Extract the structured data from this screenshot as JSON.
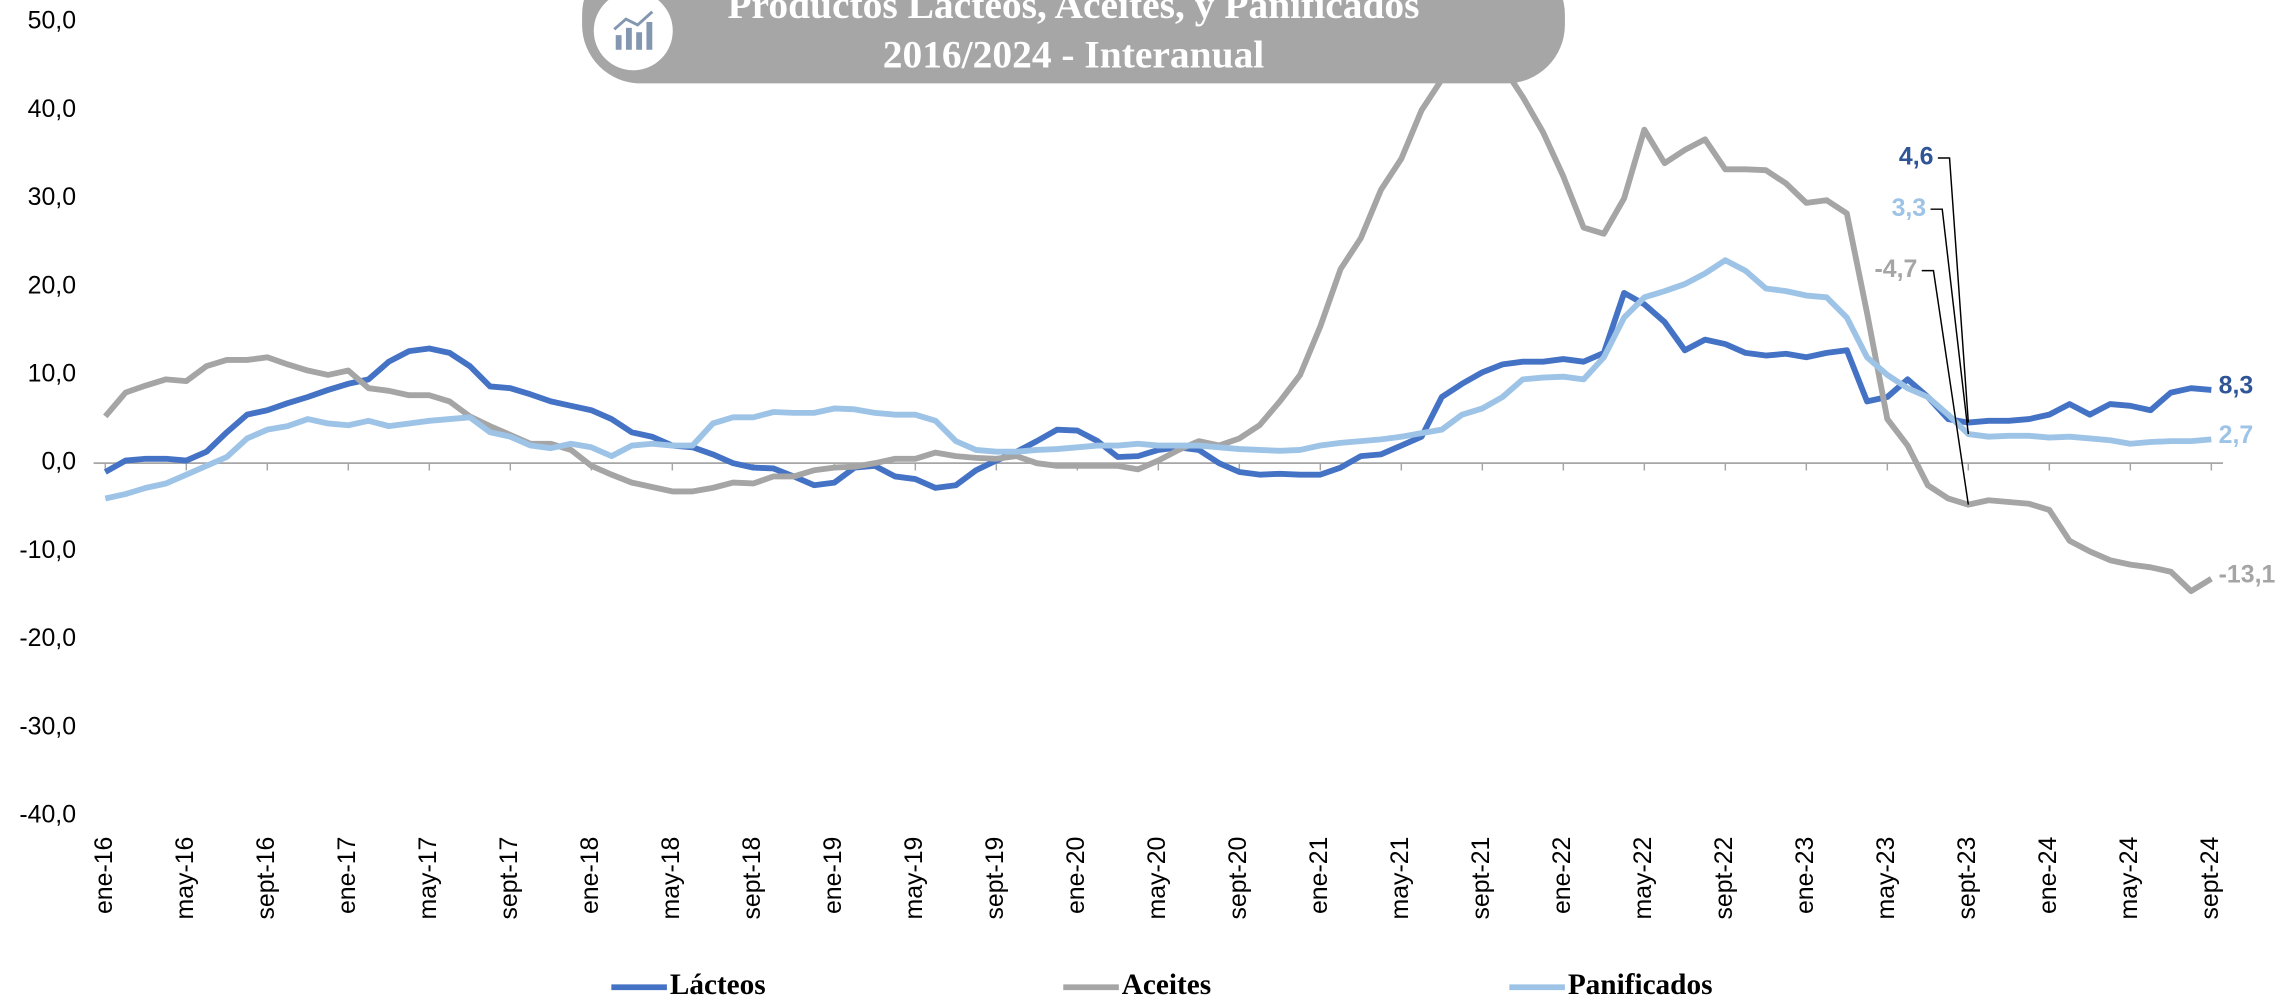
{
  "chart_data": {
    "type": "line",
    "title": "Productos Lácteos, Aceites, y Panificados",
    "subtitle": "2016/2024 - Interanual",
    "categories": [
      "ene-16",
      null,
      null,
      null,
      "may-16",
      null,
      null,
      null,
      "sept-16",
      null,
      null,
      null,
      "ene-17",
      null,
      null,
      null,
      "may-17",
      null,
      null,
      null,
      "sept-17",
      null,
      null,
      null,
      "ene-18",
      null,
      null,
      null,
      "may-18",
      null,
      null,
      null,
      "sept-18",
      null,
      null,
      null,
      "ene-19",
      null,
      null,
      null,
      "may-19",
      null,
      null,
      null,
      "sept-19",
      null,
      null,
      null,
      "ene-20",
      null,
      null,
      null,
      "may-20",
      null,
      null,
      null,
      "sept-20",
      null,
      null,
      null,
      "ene-21",
      null,
      null,
      null,
      "may-21",
      null,
      null,
      null,
      "sept-21",
      null,
      null,
      null,
      "ene-22",
      null,
      null,
      null,
      "may-22",
      null,
      null,
      null,
      "sept-22",
      null,
      null,
      null,
      "ene-23",
      null,
      null,
      null,
      "may-23",
      null,
      null,
      null,
      "sept-23",
      null,
      null,
      null,
      "ene-24",
      null,
      null,
      null,
      "may-24",
      null,
      null,
      null,
      "sept-24"
    ],
    "series": [
      {
        "name": "Lácteos",
        "color": "#4472c4",
        "label_color": "#2f5597",
        "values": [
          -1,
          0.3,
          0.5,
          0.5,
          0.3,
          1.3,
          3.5,
          5.5,
          6,
          6.8,
          7.5,
          8.3,
          9,
          9.5,
          11.5,
          12.7,
          13,
          12.5,
          11,
          8.7,
          8.5,
          7.8,
          7,
          6.5,
          6,
          5,
          3.5,
          3,
          2,
          1.8,
          1,
          0,
          -0.5,
          -0.6,
          -1.5,
          -2.5,
          -2.2,
          -0.5,
          -0.3,
          -1.5,
          -1.8,
          -2.8,
          -2.5,
          -0.8,
          0.3,
          1.3,
          2.5,
          3.8,
          3.7,
          2.5,
          0.7,
          0.8,
          1.5,
          1.8,
          1.5,
          0,
          -1,
          -1.3,
          -1.2,
          -1.3,
          -1.3,
          -0.5,
          0.8,
          1,
          2,
          3,
          7.5,
          9,
          10.3,
          11.2,
          11.5,
          11.5,
          11.8,
          11.5,
          12.5,
          19.3,
          18,
          16,
          12.8,
          14,
          13.5,
          12.5,
          12.2,
          12.4,
          12,
          12.5,
          12.8,
          7,
          7.5,
          9.5,
          7.5,
          5,
          4.6,
          4.8,
          4.8,
          5,
          5.5,
          6.7,
          5.5,
          6.7,
          6.5,
          6,
          8,
          8.5,
          8.3
        ],
        "value_labels": [
          null,
          null,
          null,
          null,
          null,
          null,
          null,
          null,
          null,
          null,
          null,
          null,
          null,
          null,
          null,
          null,
          null,
          null,
          null,
          null,
          null,
          null,
          null,
          null,
          null,
          null,
          null,
          null,
          null,
          null,
          null,
          null,
          null,
          null,
          null,
          null,
          null,
          null,
          null,
          null,
          null,
          null,
          null,
          null,
          null,
          null,
          null,
          null,
          null,
          null,
          null,
          null,
          null,
          null,
          null,
          null,
          null,
          null,
          null,
          null,
          null,
          null,
          null,
          null,
          null,
          null,
          null,
          null,
          null,
          null,
          null,
          null,
          null,
          null,
          null,
          null,
          null,
          null,
          null,
          null,
          null,
          null,
          null,
          null,
          null,
          null,
          null,
          null,
          null,
          null,
          null,
          null,
          "4,6",
          null,
          null,
          null,
          null,
          null,
          null,
          null,
          null,
          null,
          null,
          null,
          "8,3"
        ]
      },
      {
        "name": "Aceites",
        "color": "#a5a5a5",
        "label_color": "#a5a5a5",
        "values": [
          5.3,
          8,
          8.8,
          9.5,
          9.3,
          11,
          11.7,
          11.7,
          12,
          11.2,
          10.5,
          10,
          10.5,
          8.5,
          8.2,
          7.7,
          7.7,
          7,
          5.3,
          4.2,
          3.2,
          2.2,
          2.2,
          1.5,
          -0.3,
          -1.3,
          -2.2,
          -2.7,
          -3.2,
          -3.2,
          -2.8,
          -2.2,
          -2.3,
          -1.5,
          -1.5,
          -0.8,
          -0.5,
          -0.4,
          0,
          0.5,
          0.5,
          1.2,
          0.8,
          0.6,
          0.5,
          0.8,
          0,
          -0.3,
          -0.3,
          -0.3,
          -0.3,
          -0.7,
          0.3,
          1.5,
          2.5,
          2,
          2.8,
          4.3,
          7,
          10,
          15.5,
          22,
          25.5,
          31,
          34.5,
          40,
          43.5,
          47,
          47,
          45,
          41.5,
          37.5,
          32.5,
          26.7,
          26,
          30,
          37.8,
          34,
          35.5,
          36.7,
          33.3,
          33.3,
          33.2,
          31.7,
          29.5,
          29.8,
          28.3,
          17,
          5,
          2,
          -2.5,
          -4,
          -4.7,
          -4.2,
          -4.4,
          -4.6,
          -5.3,
          -8.8,
          -10,
          -11,
          -11.5,
          -11.8,
          -12.3,
          -14.5,
          -13.1
        ],
        "value_labels": [
          null,
          null,
          null,
          null,
          null,
          null,
          null,
          null,
          null,
          null,
          null,
          null,
          null,
          null,
          null,
          null,
          null,
          null,
          null,
          null,
          null,
          null,
          null,
          null,
          null,
          null,
          null,
          null,
          null,
          null,
          null,
          null,
          null,
          null,
          null,
          null,
          null,
          null,
          null,
          null,
          null,
          null,
          null,
          null,
          null,
          null,
          null,
          null,
          null,
          null,
          null,
          null,
          null,
          null,
          null,
          null,
          null,
          null,
          null,
          null,
          null,
          null,
          null,
          null,
          null,
          null,
          null,
          null,
          null,
          null,
          null,
          null,
          null,
          null,
          null,
          null,
          null,
          null,
          null,
          null,
          null,
          null,
          null,
          null,
          null,
          null,
          null,
          null,
          null,
          null,
          null,
          null,
          "-4,7",
          null,
          null,
          null,
          null,
          null,
          null,
          null,
          null,
          null,
          null,
          null,
          "-13,1"
        ]
      },
      {
        "name": "Panificados",
        "color": "#9dc3e6",
        "label_color": "#9dc3e6",
        "values": [
          -4,
          -3.5,
          -2.8,
          -2.3,
          -1.3,
          -0.3,
          0.7,
          2.8,
          3.8,
          4.2,
          5,
          4.5,
          4.3,
          4.8,
          4.2,
          4.5,
          4.8,
          5,
          5.2,
          3.5,
          3,
          2,
          1.7,
          2.2,
          1.8,
          0.8,
          2,
          2.2,
          2,
          2,
          4.5,
          5.2,
          5.2,
          5.8,
          5.7,
          5.7,
          6.2,
          6.1,
          5.7,
          5.5,
          5.5,
          4.8,
          2.5,
          1.5,
          1.3,
          1.3,
          1.5,
          1.6,
          1.8,
          2,
          2,
          2.2,
          2,
          2,
          2,
          1.8,
          1.6,
          1.5,
          1.4,
          1.5,
          2,
          2.3,
          2.5,
          2.7,
          3,
          3.4,
          3.8,
          5.5,
          6.2,
          7.5,
          9.5,
          9.7,
          9.8,
          9.5,
          12,
          16.5,
          18.8,
          19.5,
          20.3,
          21.5,
          23,
          21.8,
          19.8,
          19.5,
          19,
          18.8,
          16.5,
          12,
          10,
          8.5,
          7.5,
          5.5,
          3.3,
          3,
          3.1,
          3.1,
          2.9,
          3,
          2.8,
          2.6,
          2.2,
          2.4,
          2.5,
          2.5,
          2.7
        ],
        "value_labels": [
          null,
          null,
          null,
          null,
          null,
          null,
          null,
          null,
          null,
          null,
          null,
          null,
          null,
          null,
          null,
          null,
          null,
          null,
          null,
          null,
          null,
          null,
          null,
          null,
          null,
          null,
          null,
          null,
          null,
          null,
          null,
          null,
          null,
          null,
          null,
          null,
          null,
          null,
          null,
          null,
          null,
          null,
          null,
          null,
          null,
          null,
          null,
          null,
          null,
          null,
          null,
          null,
          null,
          null,
          null,
          null,
          null,
          null,
          null,
          null,
          null,
          null,
          null,
          null,
          null,
          null,
          null,
          null,
          null,
          null,
          null,
          null,
          null,
          null,
          null,
          null,
          null,
          null,
          null,
          null,
          null,
          null,
          null,
          null,
          null,
          null,
          null,
          null,
          null,
          null,
          null,
          null,
          "3,3",
          null,
          null,
          null,
          null,
          null,
          null,
          null,
          null,
          null,
          null,
          null,
          "2,7"
        ]
      }
    ],
    "ylim": [
      -40,
      50
    ],
    "yticks": [
      {
        "value": -40,
        "label": "-40,0"
      },
      {
        "value": -30,
        "label": "-30,0"
      },
      {
        "value": -20,
        "label": "-20,0"
      },
      {
        "value": -10,
        "label": "-10,0"
      },
      {
        "value": 0,
        "label": "0,0"
      },
      {
        "value": 10,
        "label": "10,0"
      },
      {
        "value": 20,
        "label": "20,0"
      },
      {
        "value": 30,
        "label": "30,0"
      },
      {
        "value": 40,
        "label": "40,0"
      },
      {
        "value": 50,
        "label": "50,0"
      }
    ],
    "grid": false,
    "legend": "bottom"
  }
}
